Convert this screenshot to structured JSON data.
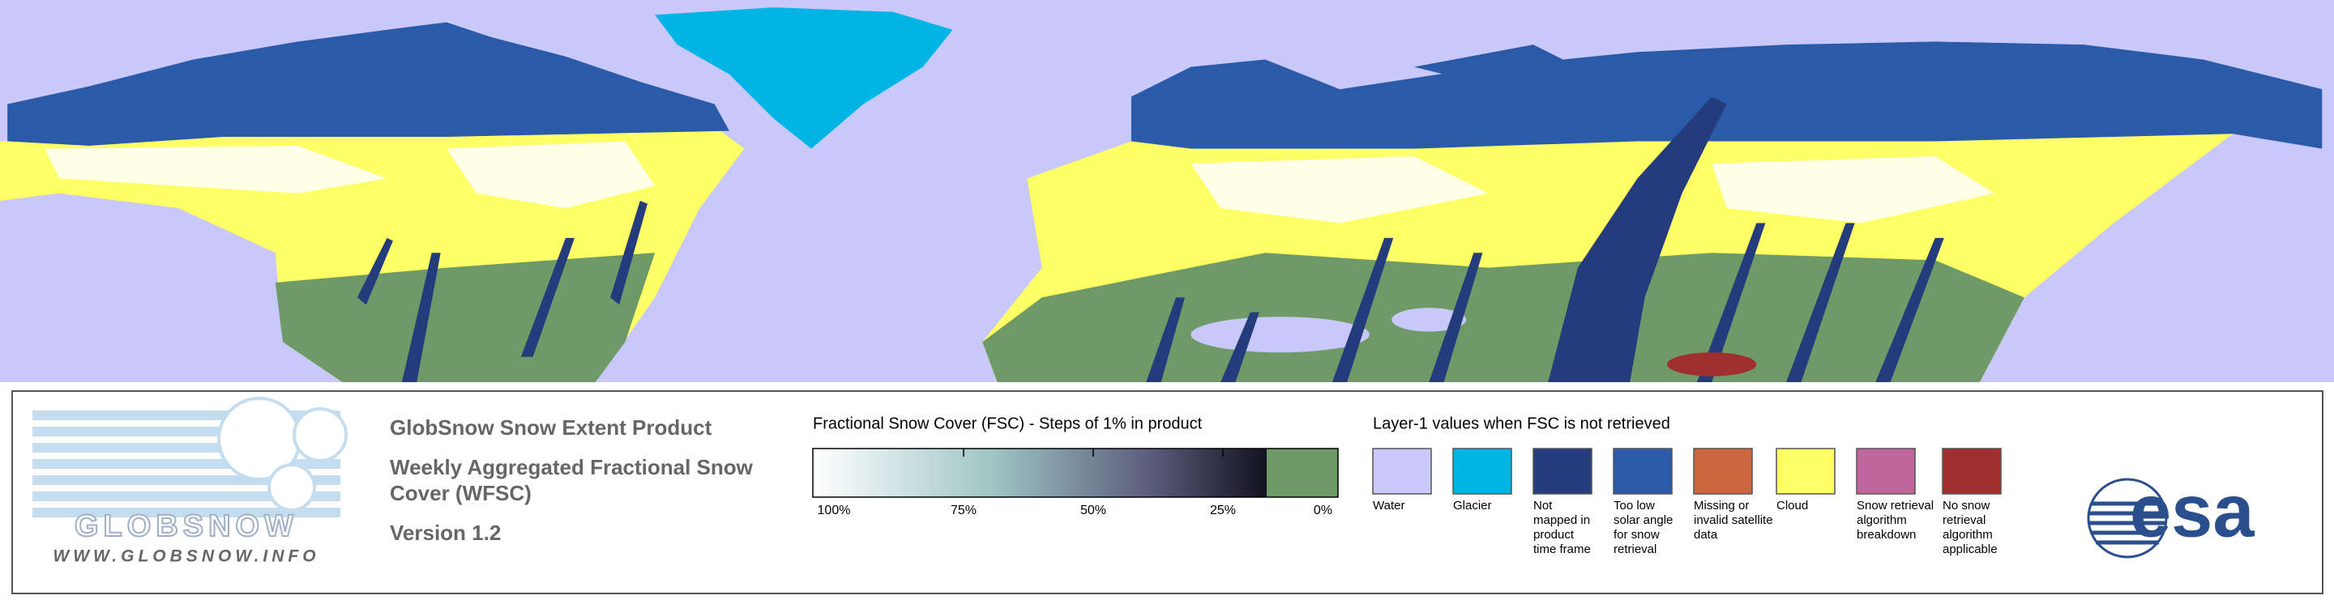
{
  "logo": {
    "name": "GLOBSNOW",
    "url": "WWW.GLOBSNOW.INFO"
  },
  "product": {
    "title": "GlobSnow Snow Extent Product",
    "subtitle_lines": [
      "Weekly Aggregated Fractional Snow",
      "Cover (WFSC)"
    ],
    "version": "Version 1.2"
  },
  "colorbar": {
    "title": "Fractional Snow Cover (FSC) - Steps of 1% in product",
    "ticks": [
      "100%",
      "75%",
      "50%",
      "25%",
      "0%"
    ]
  },
  "layer1": {
    "title": "Layer-1 values when FSC is not retrieved",
    "classes": [
      {
        "color": "#c8c8fa",
        "label": [
          "Water"
        ]
      },
      {
        "color": "#00b4e6",
        "label": [
          "Glacier"
        ]
      },
      {
        "color": "#243c7c",
        "label": [
          "Not",
          "mapped in",
          "product",
          "time frame"
        ]
      },
      {
        "color": "#2a5aa8",
        "label": [
          "Too low",
          "solar angle",
          "for snow",
          "retrieval"
        ]
      },
      {
        "color": "#cc6640",
        "label": [
          "Missing or",
          "invalid satellite",
          "data"
        ]
      },
      {
        "color": "#ffff66",
        "label": [
          "Cloud"
        ]
      },
      {
        "color": "#c0659e",
        "label": [
          "Snow retrieval",
          "algorithm",
          "breakdown"
        ]
      },
      {
        "color": "#a03030",
        "label": [
          "No snow",
          "retrieval",
          "algorithm",
          "applicable"
        ]
      }
    ]
  },
  "agency_logo": "esa"
}
